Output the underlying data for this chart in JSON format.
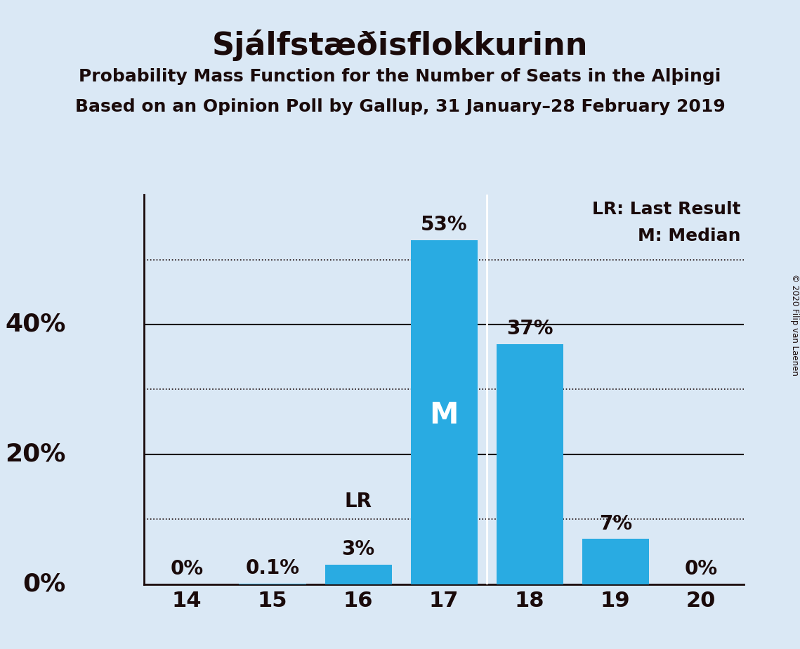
{
  "title": "Sjálfstæðisflokkurinn",
  "subtitle1": "Probability Mass Function for the Number of Seats in the Alþingi",
  "subtitle2": "Based on an Opinion Poll by Gallup, 31 January–28 February 2019",
  "copyright": "© 2020 Filip van Laenen",
  "seats": [
    14,
    15,
    16,
    17,
    18,
    19,
    20
  ],
  "probabilities": [
    0.0,
    0.001,
    0.03,
    0.53,
    0.37,
    0.07,
    0.0
  ],
  "labels": [
    "0%",
    "0.1%",
    "3%",
    "53%",
    "37%",
    "7%",
    "0%"
  ],
  "bar_color": "#29ABE2",
  "background_color": "#DAE8F5",
  "text_color": "#1a0a0a",
  "median_seat": 17,
  "lr_seat": 16,
  "ylim": [
    0,
    0.6
  ],
  "legend_lr": "LR: Last Result",
  "legend_m": "M: Median",
  "title_fontsize": 32,
  "subtitle_fontsize": 18,
  "label_fontsize": 20,
  "tick_fontsize": 22,
  "ytick_fontsize": 26,
  "median_label_fontsize": 30,
  "legend_fontsize": 18
}
